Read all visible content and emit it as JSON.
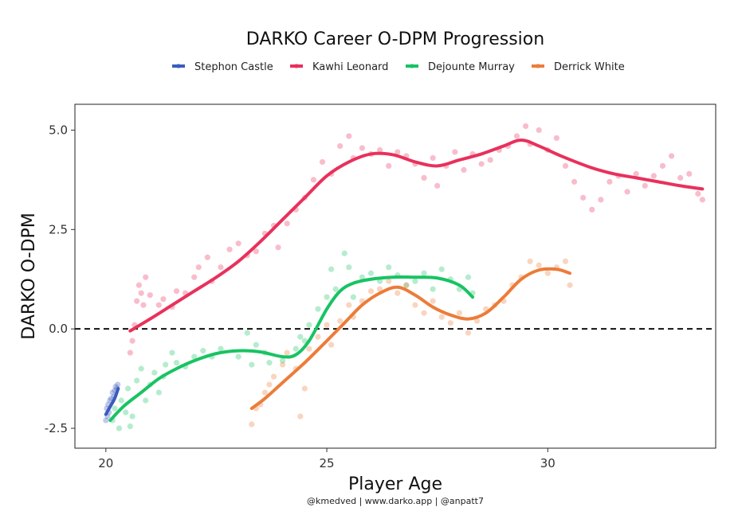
{
  "chart_data": {
    "type": "scatter",
    "title": "DARKO Career O-DPM Progression",
    "xlabel": "Player Age",
    "ylabel": "DARKO O-DPM",
    "caption": "@kmedved | www.darko.app | @anpatt7",
    "xlim": [
      19.3,
      33.8
    ],
    "ylim": [
      -3.0,
      5.65
    ],
    "xticks": [
      20,
      25,
      30
    ],
    "yticks": [
      -2.5,
      0.0,
      2.5,
      5.0
    ],
    "ytick_labels": [
      "-2.5",
      "0.0",
      "2.5",
      "5.0"
    ],
    "reference_line": {
      "y": 0.0,
      "style": "dashed"
    },
    "grid": false,
    "legend_position": "top",
    "series": [
      {
        "name": "Stephon Castle",
        "color": "#3a5cbd",
        "smooth": [
          [
            20.0,
            -2.15
          ],
          [
            20.1,
            -1.95
          ],
          [
            20.2,
            -1.75
          ],
          [
            20.28,
            -1.5
          ]
        ],
        "points": [
          [
            20.0,
            -2.3
          ],
          [
            20.02,
            -2.0
          ],
          [
            20.04,
            -2.2
          ],
          [
            20.05,
            -1.9
          ],
          [
            20.07,
            -2.1
          ],
          [
            20.09,
            -1.8
          ],
          [
            20.12,
            -1.75
          ],
          [
            20.15,
            -1.6
          ],
          [
            20.18,
            -1.7
          ],
          [
            20.2,
            -1.55
          ],
          [
            20.22,
            -1.45
          ],
          [
            20.25,
            -1.5
          ],
          [
            20.27,
            -1.4
          ]
        ]
      },
      {
        "name": "Kawhi Leonard",
        "color": "#e8315c",
        "smooth": [
          [
            20.55,
            -0.05
          ],
          [
            21.0,
            0.25
          ],
          [
            21.5,
            0.6
          ],
          [
            22.0,
            0.95
          ],
          [
            22.5,
            1.3
          ],
          [
            23.0,
            1.7
          ],
          [
            23.5,
            2.2
          ],
          [
            24.0,
            2.75
          ],
          [
            24.5,
            3.3
          ],
          [
            25.0,
            3.85
          ],
          [
            25.5,
            4.2
          ],
          [
            26.0,
            4.4
          ],
          [
            26.5,
            4.38
          ],
          [
            27.0,
            4.2
          ],
          [
            27.5,
            4.1
          ],
          [
            28.0,
            4.25
          ],
          [
            28.5,
            4.4
          ],
          [
            29.0,
            4.6
          ],
          [
            29.4,
            4.75
          ],
          [
            29.8,
            4.6
          ],
          [
            30.3,
            4.35
          ],
          [
            31.0,
            4.05
          ],
          [
            31.5,
            3.9
          ],
          [
            32.0,
            3.8
          ],
          [
            32.5,
            3.7
          ],
          [
            33.0,
            3.6
          ],
          [
            33.5,
            3.52
          ]
        ],
        "points": [
          [
            20.55,
            -0.6
          ],
          [
            20.6,
            -0.3
          ],
          [
            20.65,
            0.1
          ],
          [
            20.7,
            0.7
          ],
          [
            20.75,
            1.1
          ],
          [
            20.8,
            0.9
          ],
          [
            20.85,
            0.6
          ],
          [
            20.9,
            1.3
          ],
          [
            21.0,
            0.85
          ],
          [
            21.2,
            0.6
          ],
          [
            21.3,
            0.75
          ],
          [
            21.5,
            0.55
          ],
          [
            21.6,
            0.95
          ],
          [
            21.8,
            0.9
          ],
          [
            22.0,
            1.3
          ],
          [
            22.1,
            1.55
          ],
          [
            22.3,
            1.8
          ],
          [
            22.4,
            1.2
          ],
          [
            22.6,
            1.55
          ],
          [
            22.8,
            2.0
          ],
          [
            23.0,
            2.15
          ],
          [
            23.2,
            1.85
          ],
          [
            23.4,
            1.95
          ],
          [
            23.6,
            2.4
          ],
          [
            23.8,
            2.6
          ],
          [
            23.9,
            2.05
          ],
          [
            24.1,
            2.65
          ],
          [
            24.3,
            3.0
          ],
          [
            24.5,
            3.3
          ],
          [
            24.7,
            3.75
          ],
          [
            24.9,
            4.2
          ],
          [
            25.1,
            3.9
          ],
          [
            25.3,
            4.6
          ],
          [
            25.5,
            4.85
          ],
          [
            25.6,
            4.3
          ],
          [
            25.8,
            4.55
          ],
          [
            26.0,
            4.4
          ],
          [
            26.2,
            4.5
          ],
          [
            26.4,
            4.1
          ],
          [
            26.6,
            4.45
          ],
          [
            26.8,
            4.35
          ],
          [
            27.0,
            4.15
          ],
          [
            27.2,
            3.8
          ],
          [
            27.4,
            4.3
          ],
          [
            27.5,
            3.6
          ],
          [
            27.7,
            4.1
          ],
          [
            27.9,
            4.45
          ],
          [
            28.1,
            4.0
          ],
          [
            28.3,
            4.4
          ],
          [
            28.5,
            4.15
          ],
          [
            28.7,
            4.25
          ],
          [
            28.9,
            4.5
          ],
          [
            29.1,
            4.6
          ],
          [
            29.3,
            4.85
          ],
          [
            29.5,
            5.1
          ],
          [
            29.6,
            4.65
          ],
          [
            29.8,
            5.0
          ],
          [
            30.0,
            4.5
          ],
          [
            30.2,
            4.8
          ],
          [
            30.4,
            4.1
          ],
          [
            30.6,
            3.7
          ],
          [
            30.8,
            3.3
          ],
          [
            31.0,
            3.0
          ],
          [
            31.2,
            3.25
          ],
          [
            31.4,
            3.7
          ],
          [
            31.6,
            3.85
          ],
          [
            31.8,
            3.45
          ],
          [
            32.0,
            3.9
          ],
          [
            32.2,
            3.6
          ],
          [
            32.4,
            3.85
          ],
          [
            32.6,
            4.1
          ],
          [
            32.8,
            4.35
          ],
          [
            33.0,
            3.8
          ],
          [
            33.2,
            3.9
          ],
          [
            33.4,
            3.4
          ],
          [
            33.5,
            3.25
          ]
        ]
      },
      {
        "name": "Dejounte Murray",
        "color": "#18c363",
        "smooth": [
          [
            20.1,
            -2.3
          ],
          [
            20.4,
            -1.95
          ],
          [
            20.8,
            -1.6
          ],
          [
            21.2,
            -1.25
          ],
          [
            21.6,
            -1.0
          ],
          [
            22.0,
            -0.8
          ],
          [
            22.5,
            -0.62
          ],
          [
            23.0,
            -0.55
          ],
          [
            23.5,
            -0.58
          ],
          [
            24.0,
            -0.7
          ],
          [
            24.3,
            -0.65
          ],
          [
            24.6,
            -0.3
          ],
          [
            25.0,
            0.5
          ],
          [
            25.3,
            0.95
          ],
          [
            25.6,
            1.15
          ],
          [
            26.0,
            1.25
          ],
          [
            26.5,
            1.3
          ],
          [
            27.0,
            1.3
          ],
          [
            27.5,
            1.28
          ],
          [
            28.0,
            1.1
          ],
          [
            28.3,
            0.8
          ]
        ],
        "points": [
          [
            20.15,
            -2.3
          ],
          [
            20.2,
            -2.0
          ],
          [
            20.3,
            -2.5
          ],
          [
            20.35,
            -1.8
          ],
          [
            20.45,
            -2.1
          ],
          [
            20.5,
            -1.5
          ],
          [
            20.55,
            -2.45
          ],
          [
            20.6,
            -2.2
          ],
          [
            20.7,
            -1.3
          ],
          [
            20.8,
            -1.0
          ],
          [
            20.9,
            -1.8
          ],
          [
            21.0,
            -1.4
          ],
          [
            21.1,
            -1.1
          ],
          [
            21.2,
            -1.6
          ],
          [
            21.3,
            -1.2
          ],
          [
            21.35,
            -0.9
          ],
          [
            21.5,
            -0.6
          ],
          [
            21.6,
            -0.85
          ],
          [
            21.8,
            -0.95
          ],
          [
            22.0,
            -0.7
          ],
          [
            22.2,
            -0.55
          ],
          [
            22.4,
            -0.7
          ],
          [
            22.6,
            -0.5
          ],
          [
            23.0,
            -0.7
          ],
          [
            23.2,
            -0.1
          ],
          [
            23.3,
            -0.9
          ],
          [
            23.4,
            -0.4
          ],
          [
            23.6,
            -0.6
          ],
          [
            23.7,
            -0.85
          ],
          [
            24.0,
            -0.8
          ],
          [
            24.3,
            -0.5
          ],
          [
            24.4,
            -0.2
          ],
          [
            24.5,
            -0.3
          ],
          [
            24.6,
            0.1
          ],
          [
            24.8,
            0.5
          ],
          [
            25.0,
            0.8
          ],
          [
            25.1,
            1.5
          ],
          [
            25.2,
            1.0
          ],
          [
            25.4,
            1.9
          ],
          [
            25.5,
            1.55
          ],
          [
            25.6,
            0.8
          ],
          [
            25.8,
            1.3
          ],
          [
            26.0,
            1.4
          ],
          [
            26.2,
            1.2
          ],
          [
            26.4,
            1.55
          ],
          [
            26.6,
            1.35
          ],
          [
            26.8,
            1.1
          ],
          [
            27.0,
            1.2
          ],
          [
            27.2,
            1.4
          ],
          [
            27.4,
            1.0
          ],
          [
            27.6,
            1.5
          ],
          [
            27.8,
            1.25
          ],
          [
            28.0,
            1.0
          ],
          [
            28.2,
            1.3
          ],
          [
            28.3,
            0.9
          ]
        ]
      },
      {
        "name": "Derrick White",
        "color": "#ec7c39",
        "smooth": [
          [
            23.3,
            -2.0
          ],
          [
            23.6,
            -1.75
          ],
          [
            24.0,
            -1.35
          ],
          [
            24.5,
            -0.85
          ],
          [
            25.0,
            -0.3
          ],
          [
            25.4,
            0.15
          ],
          [
            25.8,
            0.6
          ],
          [
            26.2,
            0.9
          ],
          [
            26.6,
            1.05
          ],
          [
            27.0,
            0.85
          ],
          [
            27.4,
            0.55
          ],
          [
            27.8,
            0.35
          ],
          [
            28.2,
            0.25
          ],
          [
            28.6,
            0.4
          ],
          [
            29.0,
            0.8
          ],
          [
            29.4,
            1.25
          ],
          [
            29.8,
            1.48
          ],
          [
            30.2,
            1.5
          ],
          [
            30.5,
            1.4
          ]
        ],
        "points": [
          [
            23.3,
            -2.4
          ],
          [
            23.4,
            -2.0
          ],
          [
            23.5,
            -1.9
          ],
          [
            23.6,
            -1.6
          ],
          [
            23.7,
            -1.4
          ],
          [
            23.8,
            -1.2
          ],
          [
            24.0,
            -0.9
          ],
          [
            24.1,
            -0.6
          ],
          [
            24.3,
            -1.0
          ],
          [
            24.4,
            -2.2
          ],
          [
            24.5,
            -1.5
          ],
          [
            24.6,
            -0.5
          ],
          [
            24.8,
            -0.2
          ],
          [
            25.0,
            0.1
          ],
          [
            25.1,
            -0.4
          ],
          [
            25.3,
            0.2
          ],
          [
            25.5,
            0.6
          ],
          [
            25.6,
            0.3
          ],
          [
            25.8,
            0.7
          ],
          [
            26.0,
            0.95
          ],
          [
            26.2,
            1.0
          ],
          [
            26.4,
            1.2
          ],
          [
            26.6,
            0.9
          ],
          [
            26.8,
            1.1
          ],
          [
            27.0,
            0.6
          ],
          [
            27.2,
            0.4
          ],
          [
            27.4,
            0.7
          ],
          [
            27.6,
            0.3
          ],
          [
            27.8,
            0.15
          ],
          [
            28.0,
            0.4
          ],
          [
            28.2,
            -0.1
          ],
          [
            28.4,
            0.2
          ],
          [
            28.6,
            0.5
          ],
          [
            28.8,
            0.6
          ],
          [
            29.0,
            0.7
          ],
          [
            29.2,
            1.1
          ],
          [
            29.4,
            1.3
          ],
          [
            29.6,
            1.7
          ],
          [
            29.8,
            1.6
          ],
          [
            30.0,
            1.4
          ],
          [
            30.2,
            1.55
          ],
          [
            30.4,
            1.7
          ],
          [
            30.5,
            1.1
          ]
        ]
      }
    ]
  }
}
